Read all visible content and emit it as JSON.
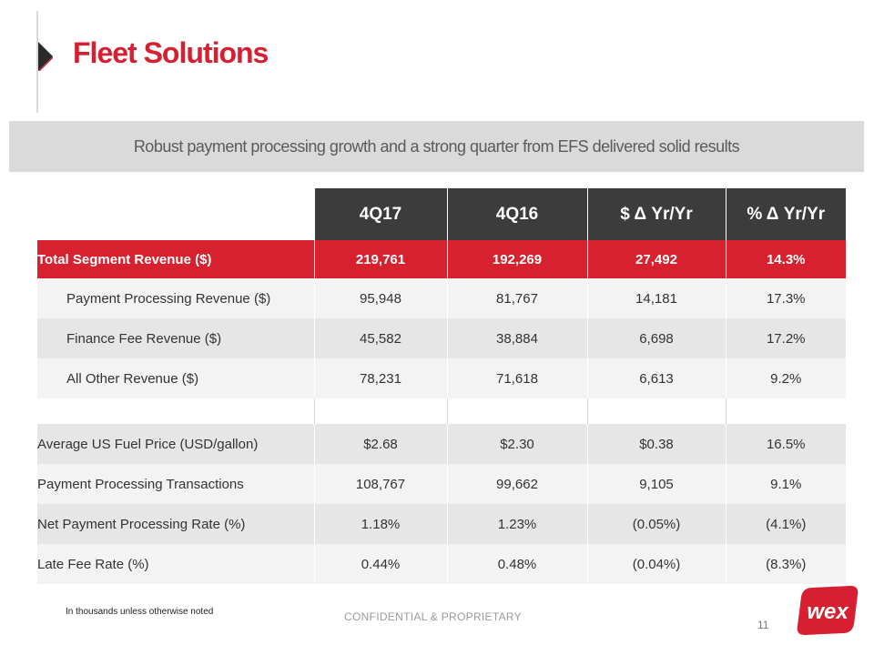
{
  "slide": {
    "title": "Fleet Solutions",
    "subtitle": "Robust payment processing growth and a strong quarter from EFS delivered solid results"
  },
  "table": {
    "columns": [
      "4Q17",
      "4Q16",
      "$ Δ Yr/Yr",
      "% Δ Yr/Yr"
    ],
    "total_row": {
      "label": "Total Segment Revenue ($)",
      "values": [
        "219,761",
        "192,269",
        "27,492",
        "14.3%"
      ]
    },
    "revenue_rows": [
      {
        "label": "Payment Processing Revenue ($)",
        "values": [
          "95,948",
          "81,767",
          "14,181",
          "17.3%"
        ]
      },
      {
        "label": "Finance Fee Revenue ($)",
        "values": [
          "45,582",
          "38,884",
          "6,698",
          "17.2%"
        ]
      },
      {
        "label": "All Other Revenue ($)",
        "values": [
          "78,231",
          "71,618",
          "6,613",
          "9.2%"
        ]
      }
    ],
    "metric_rows": [
      {
        "label": "Average US Fuel Price (USD/gallon)",
        "values": [
          "$2.68",
          "$2.30",
          "$0.38",
          "16.5%"
        ]
      },
      {
        "label": "Payment Processing Transactions",
        "values": [
          "108,767",
          "99,662",
          "9,105",
          "9.1%"
        ]
      },
      {
        "label": "Net Payment Processing Rate (%)",
        "values": [
          "1.18%",
          "1.23%",
          "(0.05%)",
          "(4.1%)"
        ]
      },
      {
        "label": "Late Fee Rate (%)",
        "values": [
          "0.44%",
          "0.48%",
          "(0.04%)",
          "(8.3%)"
        ]
      }
    ]
  },
  "footer": {
    "footnote": "In thousands unless otherwise noted",
    "confidential": "CONFIDENTIAL & PROPRIETARY",
    "page_number": "11",
    "logo_text": "wex"
  },
  "colors": {
    "brand_red": "#d61f30",
    "header_dark": "#3c3c3c",
    "band_gray": "#dadada",
    "row_shade": "#e6e6e6",
    "row_light": "#f3f3f3"
  }
}
